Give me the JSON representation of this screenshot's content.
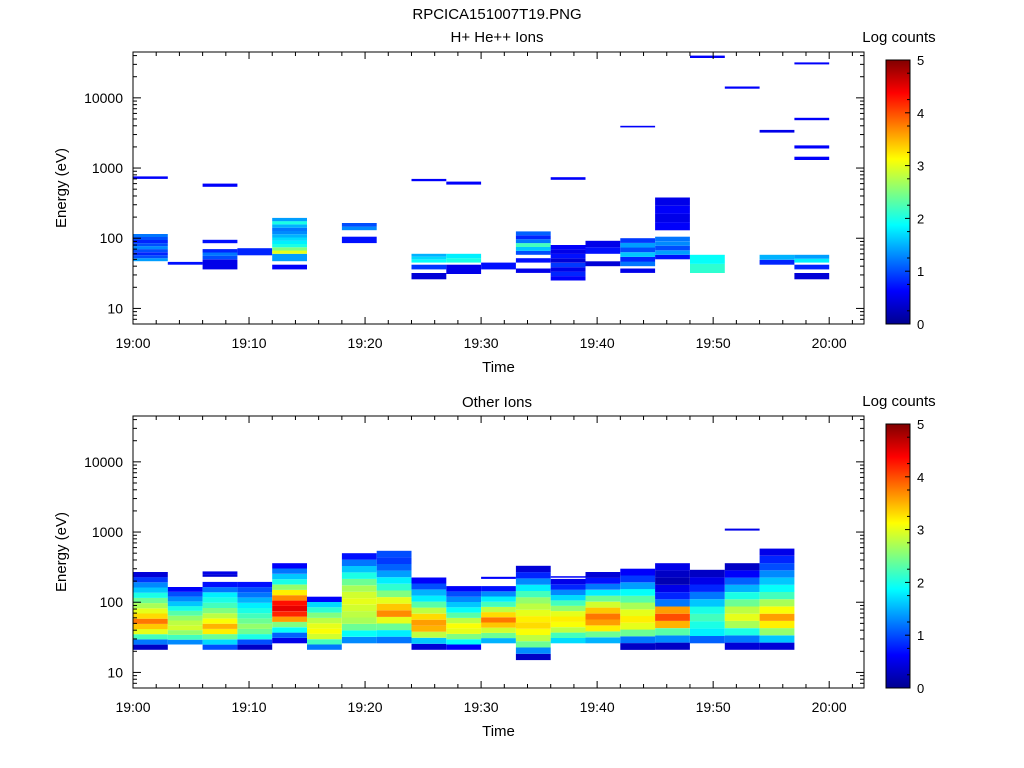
{
  "figure_title": "RPCICA151007T19.PNG",
  "colorbar_colors": [
    "#00008f",
    "#0000ff",
    "#0080ff",
    "#00ffff",
    "#80ff80",
    "#ffff00",
    "#ff8000",
    "#ff0000",
    "#800000"
  ],
  "chart_data": [
    {
      "type": "heatmap",
      "title": "H+ He++ Ions",
      "xlabel": "Time",
      "ylabel": "Energy (eV)",
      "yscale": "log",
      "xlim": [
        "19:00",
        "20:03"
      ],
      "ylim": [
        6,
        45000
      ],
      "xticks": [
        "19:00",
        "19:10",
        "19:20",
        "19:30",
        "19:40",
        "19:50",
        "20:00"
      ],
      "yticks": [
        {
          "value": 10,
          "label": "10"
        },
        {
          "value": 100,
          "label": "100"
        },
        {
          "value": 1000,
          "label": "1000"
        },
        {
          "value": 10000,
          "label": "10000"
        }
      ],
      "colorbar": {
        "label": "Log counts",
        "range": [
          0,
          5
        ],
        "ticks": [
          "0",
          "1",
          "2",
          "3",
          "4",
          "5"
        ]
      },
      "time_bins": [
        "19:00",
        "19:03",
        "19:06",
        "19:09",
        "19:12",
        "19:15",
        "19:18",
        "19:21",
        "19:24",
        "19:27",
        "19:30",
        "19:33",
        "19:36",
        "19:39",
        "19:42",
        "19:45",
        "19:48",
        "19:51",
        "19:54",
        "19:57",
        "20:00",
        "20:03"
      ],
      "cells": [
        [
          0,
          47,
          115,
          [
            1.4,
            1.0,
            0.8,
            1.0,
            1.3,
            1.0,
            0.8,
            1.0,
            1.2
          ]
        ],
        [
          0,
          700,
          760,
          [
            0.6
          ]
        ],
        [
          1,
          42,
          46,
          [
            0.7
          ]
        ],
        [
          2,
          36,
          50,
          [
            0.5
          ]
        ],
        [
          2,
          50,
          70,
          [
            1.0,
            1.2,
            0.8
          ]
        ],
        [
          2,
          85,
          95,
          [
            0.7
          ]
        ],
        [
          2,
          540,
          600,
          [
            0.6
          ]
        ],
        [
          3,
          57,
          72,
          [
            0.8
          ]
        ],
        [
          4,
          36,
          42,
          [
            0.6
          ]
        ],
        [
          4,
          47,
          60,
          [
            1.4
          ]
        ],
        [
          4,
          60,
          195,
          [
            3.0,
            2.5,
            2.0,
            1.8,
            1.7,
            1.5,
            1.3,
            1.2,
            1.5,
            2.0,
            1.4
          ]
        ],
        [
          6,
          85,
          105,
          [
            0.7
          ]
        ],
        [
          6,
          130,
          165,
          [
            1.3,
            1.0
          ]
        ],
        [
          8,
          26,
          32,
          [
            0.4
          ]
        ],
        [
          8,
          36,
          42,
          [
            0.9
          ]
        ],
        [
          8,
          45,
          60,
          [
            1.9,
            1.7,
            1.5
          ]
        ],
        [
          8,
          650,
          700,
          [
            0.6
          ]
        ],
        [
          9,
          31,
          42,
          [
            0.5
          ]
        ],
        [
          9,
          45,
          60,
          [
            2.0,
            1.8
          ]
        ],
        [
          9,
          580,
          640,
          [
            0.6
          ]
        ],
        [
          10,
          36,
          45,
          [
            0.7
          ]
        ],
        [
          11,
          32,
          37,
          [
            0.5
          ]
        ],
        [
          11,
          45,
          52,
          [
            0.7
          ]
        ],
        [
          11,
          58,
          125,
          [
            1.0,
            1.6,
            2.2,
            1.2,
            0.8,
            1.1
          ]
        ],
        [
          12,
          25,
          80,
          [
            0.6,
            0.8,
            0.5,
            0.9,
            0.4,
            0.7,
            0.5,
            0.6
          ]
        ],
        [
          12,
          680,
          740,
          [
            0.6
          ]
        ],
        [
          13,
          40,
          47,
          [
            0.4
          ]
        ],
        [
          13,
          60,
          92,
          [
            0.7,
            0.5
          ]
        ],
        [
          14,
          32,
          37,
          [
            0.5
          ]
        ],
        [
          14,
          40,
          100,
          [
            1.2,
            0.8,
            1.6,
            1.0,
            1.4,
            0.9
          ]
        ],
        [
          14,
          3800,
          4000,
          [
            0.6
          ]
        ],
        [
          15,
          50,
          105,
          [
            0.7,
            1.4,
            1.0,
            1.3,
            1.2
          ]
        ],
        [
          15,
          130,
          380,
          [
            0.6,
            0.5,
            0.6,
            0.5
          ]
        ],
        [
          16,
          32,
          58,
          [
            2.1,
            1.9
          ]
        ],
        [
          16,
          37000,
          40000,
          [
            0.6
          ]
        ],
        [
          17,
          13500,
          14500,
          [
            0.6
          ]
        ],
        [
          18,
          42,
          58,
          [
            0.8,
            1.5
          ]
        ],
        [
          18,
          3200,
          3500,
          [
            0.5
          ]
        ],
        [
          19,
          26,
          32,
          [
            0.4
          ]
        ],
        [
          19,
          36,
          42,
          [
            0.8
          ]
        ],
        [
          19,
          45,
          58,
          [
            1.8,
            1.4
          ]
        ],
        [
          19,
          1300,
          1450,
          [
            0.6
          ]
        ],
        [
          19,
          1900,
          2100,
          [
            0.6
          ]
        ],
        [
          19,
          4800,
          5200,
          [
            0.6
          ]
        ],
        [
          19,
          30000,
          32000,
          [
            0.6
          ]
        ]
      ]
    },
    {
      "type": "heatmap",
      "title": "Other Ions",
      "xlabel": "Time",
      "ylabel": "Energy (eV)",
      "yscale": "log",
      "xlim": [
        "19:00",
        "20:03"
      ],
      "ylim": [
        6,
        45000
      ],
      "xticks": [
        "19:00",
        "19:10",
        "19:20",
        "19:30",
        "19:40",
        "19:50",
        "20:00"
      ],
      "yticks": [
        {
          "value": 10,
          "label": "10"
        },
        {
          "value": 100,
          "label": "100"
        },
        {
          "value": 1000,
          "label": "1000"
        },
        {
          "value": 10000,
          "label": "10000"
        }
      ],
      "colorbar": {
        "label": "Log counts",
        "range": [
          0,
          5
        ],
        "ticks": [
          "0",
          "1",
          "2",
          "3",
          "4",
          "5"
        ]
      },
      "time_bins": [
        "19:00",
        "19:03",
        "19:06",
        "19:09",
        "19:12",
        "19:15",
        "19:18",
        "19:21",
        "19:24",
        "19:27",
        "19:30",
        "19:33",
        "19:36",
        "19:39",
        "19:42",
        "19:45",
        "19:48",
        "19:51",
        "19:54",
        "19:57",
        "20:00",
        "20:03"
      ],
      "cells": [
        [
          0,
          21,
          270,
          [
            0.3,
            1.2,
            2.2,
            3.0,
            3.4,
            3.8,
            3.3,
            3.0,
            2.7,
            2.4,
            2.0,
            1.6,
            1.3,
            0.9,
            0.4
          ]
        ],
        [
          1,
          25,
          165,
          [
            1.3,
            2.2,
            2.6,
            2.9,
            2.8,
            2.6,
            2.3,
            2.0,
            1.6,
            1.3,
            1.0,
            0.6
          ]
        ],
        [
          2,
          21,
          195,
          [
            1.0,
            1.7,
            2.4,
            3.2,
            3.5,
            3.1,
            2.8,
            2.5,
            2.2,
            2.0,
            1.8,
            1.2,
            0.7
          ]
        ],
        [
          2,
          230,
          275,
          [
            0.4,
            0.5
          ]
        ],
        [
          3,
          21,
          195,
          [
            0.3,
            1.0,
            2.0,
            2.4,
            2.6,
            2.4,
            2.2,
            2.0,
            1.8,
            1.5,
            1.2,
            1.0,
            0.7
          ]
        ],
        [
          4,
          26,
          360,
          [
            0.5,
            1.1,
            1.9,
            2.5,
            3.6,
            4.2,
            4.5,
            4.3,
            3.7,
            3.2,
            2.6,
            2.0,
            1.6,
            1.2,
            0.6
          ]
        ],
        [
          5,
          21,
          120,
          [
            1.2,
            2.2,
            2.9,
            3.1,
            3.0,
            2.8,
            2.5,
            2.1,
            1.7,
            0.6
          ]
        ],
        [
          6,
          26,
          500,
          [
            1.3,
            1.9,
            2.4,
            2.7,
            2.8,
            2.9,
            3.0,
            2.9,
            2.7,
            2.4,
            2.0,
            1.6,
            1.2,
            0.7
          ]
        ],
        [
          7,
          26,
          540,
          [
            1.2,
            1.8,
            2.4,
            3.0,
            3.7,
            3.4,
            3.0,
            2.5,
            2.1,
            1.8,
            1.4,
            1.1,
            0.9,
            1.0
          ]
        ],
        [
          8,
          21,
          225,
          [
            0.4,
            1.6,
            2.8,
            3.5,
            3.6,
            3.3,
            2.8,
            2.3,
            1.8,
            1.5,
            1.0,
            0.6
          ]
        ],
        [
          9,
          21,
          170,
          [
            0.6,
            1.9,
            2.5,
            3.0,
            3.1,
            2.8,
            2.3,
            1.9,
            1.6,
            1.3,
            1.0,
            0.6
          ]
        ],
        [
          10,
          26,
          170,
          [
            1.5,
            2.4,
            2.9,
            3.4,
            3.8,
            3.3,
            2.8,
            2.2,
            1.8,
            1.3,
            0.7
          ]
        ],
        [
          10,
          215,
          230,
          [
            0.6
          ]
        ],
        [
          11,
          15,
          330,
          [
            0.3,
            1.3,
            2.4,
            2.8,
            3.1,
            3.3,
            3.2,
            3.0,
            2.8,
            2.6,
            2.2,
            1.8,
            1.3,
            0.8,
            0.4
          ]
        ],
        [
          12,
          26,
          215,
          [
            1.7,
            2.2,
            2.8,
            3.1,
            3.2,
            3.0,
            2.6,
            2.2,
            1.7,
            1.3,
            0.8,
            0.5
          ]
        ],
        [
          12,
          225,
          235,
          [
            0.6
          ]
        ],
        [
          13,
          26,
          270,
          [
            1.5,
            2.4,
            3.2,
            3.6,
            3.8,
            3.4,
            2.9,
            2.4,
            1.8,
            1.2,
            0.7,
            0.4
          ]
        ],
        [
          14,
          21,
          300,
          [
            0.3,
            1.2,
            2.4,
            3.0,
            3.2,
            3.0,
            2.7,
            2.3,
            1.9,
            1.4,
            0.9,
            0.6
          ]
        ],
        [
          15,
          21,
          360,
          [
            0.3,
            1.3,
            2.3,
            3.5,
            4.0,
            3.6,
            1.2,
            0.8,
            0.5,
            0.2,
            0.3,
            0.5
          ]
        ],
        [
          16,
          26,
          290,
          [
            1.1,
            1.8,
            2.0,
            2.2,
            2.0,
            1.6,
            1.2,
            0.8,
            0.5,
            0.3
          ]
        ],
        [
          17,
          21,
          360,
          [
            0.4,
            1.2,
            2.0,
            2.7,
            3.0,
            2.8,
            2.4,
            2.0,
            1.5,
            1.1,
            0.6,
            0.3
          ]
        ],
        [
          17,
          1050,
          1120,
          [
            0.5
          ]
        ],
        [
          18,
          21,
          580,
          [
            0.4,
            1.6,
            2.6,
            3.2,
            3.6,
            3.1,
            2.7,
            2.2,
            1.9,
            1.6,
            1.3,
            1.0,
            0.8,
            0.5
          ]
        ]
      ]
    }
  ]
}
